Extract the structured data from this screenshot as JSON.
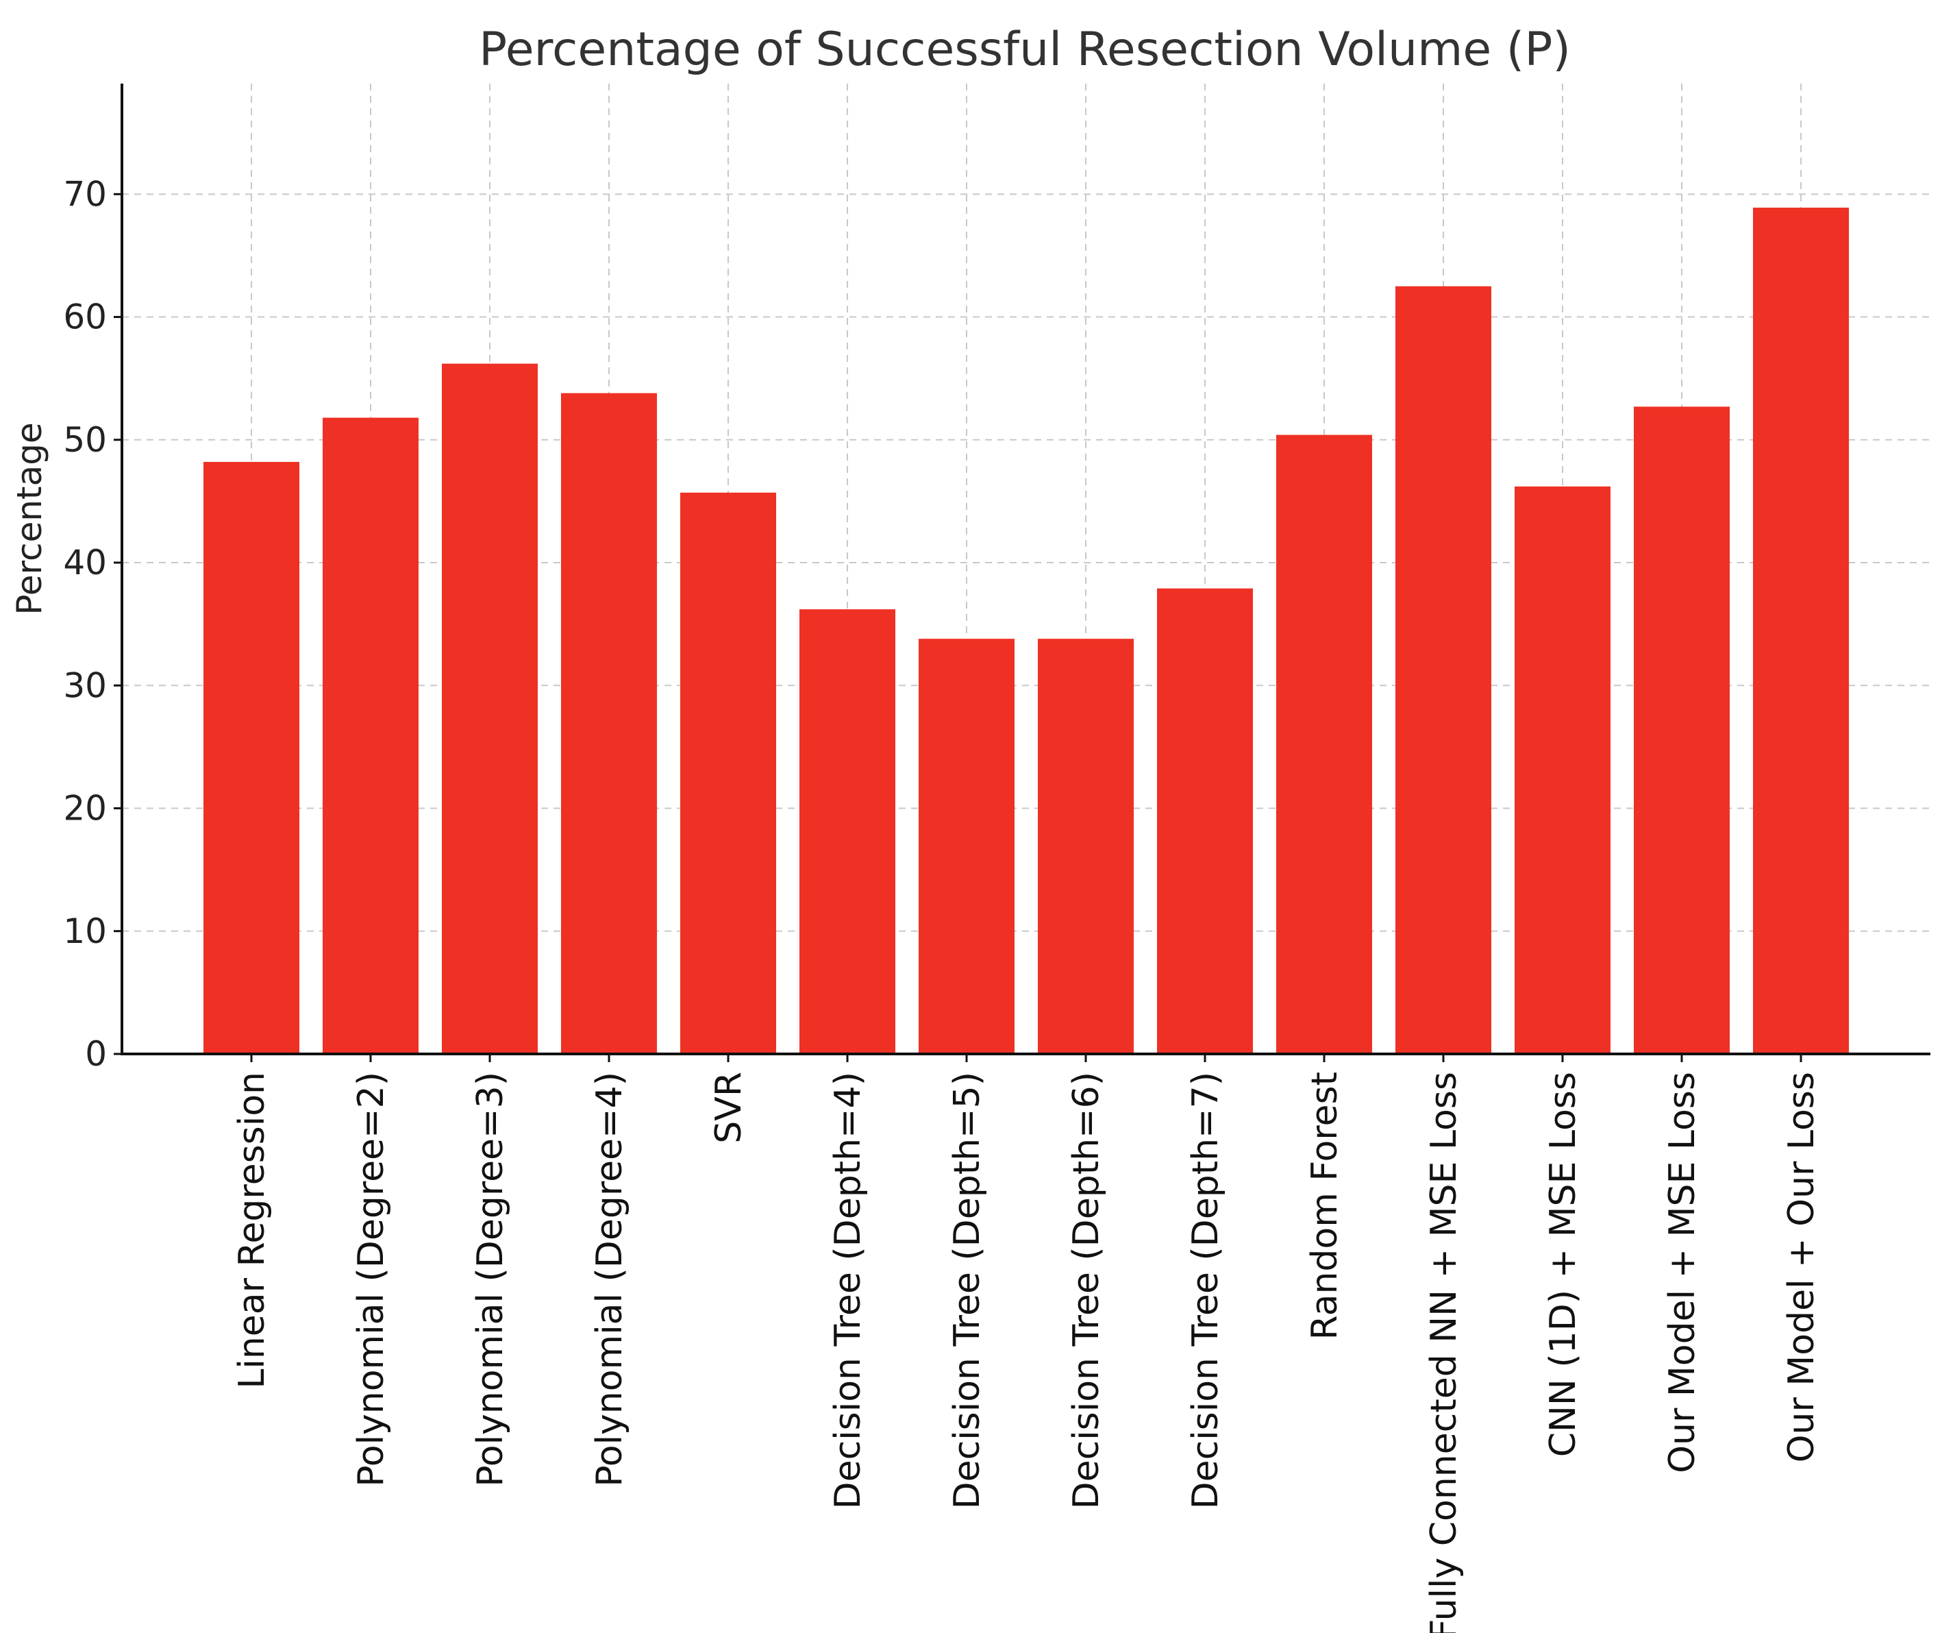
{
  "chart_data": {
    "type": "bar",
    "title": "Percentage of Successful Resection Volume (P)",
    "xlabel": "",
    "ylabel": "Percentage",
    "ylim": [
      0,
      79
    ],
    "yticks": [
      0,
      10,
      20,
      30,
      40,
      50,
      60,
      70
    ],
    "grid": true,
    "bar_color": "#ee3124",
    "categories": [
      "Linear Regression",
      "Polynomial (Degree=2)",
      "Polynomial (Degree=3)",
      "Polynomial (Degree=4)",
      "SVR",
      "Decision Tree (Depth=4)",
      "Decision Tree (Depth=5)",
      "Decision Tree (Depth=6)",
      "Decision Tree (Depth=7)",
      "Random Forest",
      "Fully Connected NN + MSE Loss",
      "CNN (1D) + MSE Loss",
      "Our Model + MSE Loss",
      "Our Model + Our Loss"
    ],
    "values": [
      48.2,
      51.8,
      56.2,
      53.8,
      45.7,
      36.2,
      33.8,
      33.8,
      37.9,
      50.4,
      62.5,
      46.2,
      52.7,
      68.9
    ]
  }
}
